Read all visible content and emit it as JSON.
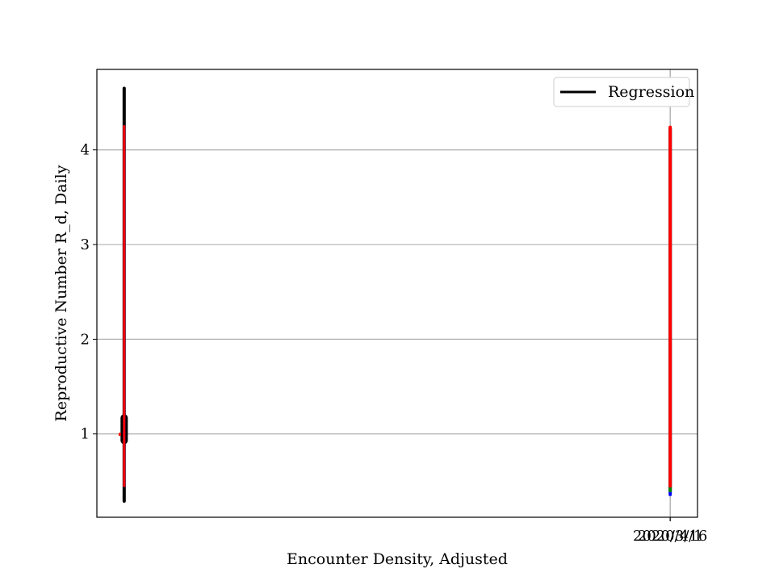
{
  "chart_data": {
    "type": "line",
    "title": "",
    "xlabel": "Encounter Density, Adjusted",
    "ylabel": "Reproductive Number R_d, Daily",
    "ylim": [
      0.12,
      4.85
    ],
    "yticks": [
      1,
      2,
      3,
      4
    ],
    "xlim": [
      -0.05,
      1.05
    ],
    "xticks": [
      {
        "value": 1.0,
        "label": "2020/3/16"
      },
      {
        "value": 1.0,
        "label": "2020/4/1"
      }
    ],
    "grid": {
      "x": true,
      "y": true
    },
    "legend": {
      "position": "top-right",
      "entries": [
        {
          "name": "Regression",
          "color": "#000000"
        }
      ]
    },
    "segments": [
      {
        "color": "#000000",
        "width": 4,
        "x": 0.0,
        "y0": 0.29,
        "y1": 4.65
      },
      {
        "color": "#000000",
        "width": 9,
        "x": 0.0,
        "y0": 0.93,
        "y1": 1.17
      },
      {
        "color": "#0000ff",
        "width": 3,
        "x": 0.0,
        "y0": 0.45,
        "y1": 4.25
      },
      {
        "color": "#ff0000",
        "width": 3,
        "x": 0.0,
        "y0": 0.45,
        "y1": 4.25
      },
      {
        "color": "#ff0000",
        "width": 3,
        "x": -0.008,
        "y0": 0.99,
        "y1": 1.0
      },
      {
        "color": "#0000ff",
        "width": 4,
        "x": 1.0,
        "y0": 0.36,
        "y1": 4.22
      },
      {
        "color": "#008000",
        "width": 4,
        "x": 1.0,
        "y0": 0.4,
        "y1": 4.22
      },
      {
        "color": "#ff0000",
        "width": 4,
        "x": 1.0,
        "y0": 0.45,
        "y1": 4.24
      }
    ]
  }
}
